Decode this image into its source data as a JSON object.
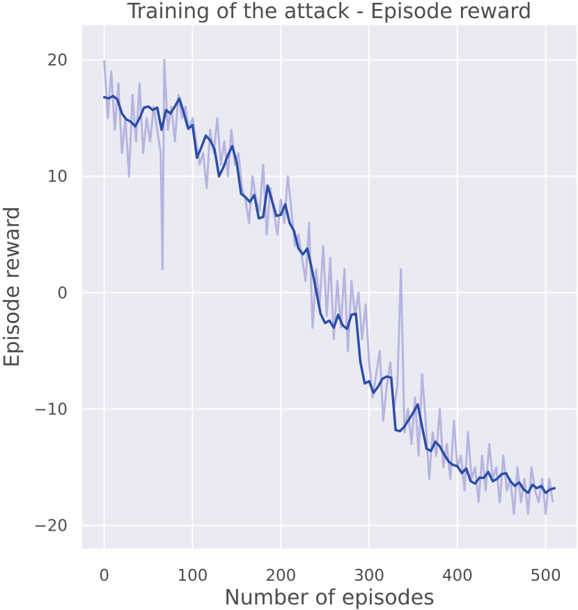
{
  "chart_data": {
    "type": "line",
    "title": "Training of the attack - Episode reward",
    "xlabel": "Number of episodes",
    "ylabel": "Episode reward",
    "xlim": [
      -25,
      535
    ],
    "ylim": [
      -22,
      23
    ],
    "xticks": [
      0,
      100,
      200,
      300,
      400,
      500
    ],
    "xtick_labels": [
      "0",
      "100",
      "200",
      "300",
      "400",
      "500"
    ],
    "yticks": [
      20,
      10,
      0,
      -10,
      -20
    ],
    "ytick_labels": [
      "20",
      "10",
      "0",
      "−10",
      "−20"
    ],
    "grid": true,
    "legend": "none",
    "colors": {
      "plot_background": "#eaeaf2",
      "grid": "#ffffff",
      "raw_series": "#b7b4e0",
      "smoothed_series": "#2b4fa5",
      "text": "#4d4d4d"
    },
    "series": [
      {
        "role": "raw",
        "x": [
          0,
          4,
          8,
          12,
          16,
          20,
          24,
          28,
          32,
          36,
          40,
          44,
          48,
          52,
          56,
          60,
          64,
          66,
          68,
          72,
          76,
          80,
          84,
          88,
          92,
          96,
          100,
          104,
          108,
          112,
          116,
          120,
          124,
          128,
          132,
          136,
          140,
          144,
          148,
          152,
          156,
          160,
          164,
          168,
          172,
          176,
          180,
          184,
          188,
          192,
          196,
          200,
          204,
          208,
          212,
          216,
          220,
          224,
          228,
          232,
          236,
          240,
          244,
          248,
          252,
          256,
          260,
          264,
          268,
          272,
          276,
          280,
          284,
          288,
          292,
          296,
          300,
          304,
          308,
          312,
          316,
          320,
          324,
          328,
          332,
          336,
          340,
          344,
          348,
          352,
          356,
          360,
          364,
          368,
          372,
          376,
          380,
          384,
          388,
          392,
          396,
          400,
          404,
          408,
          412,
          416,
          420,
          424,
          428,
          432,
          436,
          440,
          444,
          448,
          452,
          456,
          460,
          464,
          468,
          472,
          476,
          480,
          484,
          488,
          492,
          496,
          500,
          504,
          508
        ],
        "y": [
          20,
          15,
          19,
          14,
          18,
          12,
          15,
          10,
          17,
          13,
          18,
          12,
          15,
          13,
          16,
          14,
          12,
          2,
          20,
          14,
          16,
          13,
          17,
          15,
          16,
          14,
          15,
          13,
          11,
          12,
          9,
          14,
          12,
          15,
          11,
          13,
          10,
          14,
          11,
          12,
          9,
          8,
          6,
          10,
          8,
          7,
          11,
          5,
          9,
          7,
          5,
          8,
          6,
          10,
          7,
          4,
          5,
          3,
          1,
          6,
          -3,
          2,
          -1,
          4,
          -2,
          3,
          -4,
          1,
          -3,
          2,
          -5,
          1,
          -2,
          0,
          -4,
          -1,
          -6,
          -9,
          -7,
          -5,
          -11,
          -8,
          -6,
          -10,
          -8,
          2,
          -12,
          -10,
          -13,
          -9,
          -14,
          -7,
          -11,
          -16,
          -12,
          -14,
          -10,
          -15,
          -13,
          -16,
          -11,
          -15,
          -14,
          -17,
          -12,
          -16,
          -15,
          -18,
          -14,
          -17,
          -13,
          -16,
          -15,
          -18,
          -14,
          -17,
          -16,
          -19,
          -15,
          -18,
          -16,
          -19,
          -15,
          -17,
          -18,
          -16,
          -19,
          -16,
          -18
        ]
      },
      {
        "role": "smoothed",
        "x": [
          0,
          5,
          10,
          15,
          20,
          25,
          30,
          35,
          40,
          45,
          50,
          55,
          60,
          65,
          70,
          75,
          80,
          85,
          90,
          95,
          100,
          105,
          110,
          115,
          120,
          125,
          130,
          135,
          140,
          145,
          150,
          155,
          160,
          165,
          170,
          175,
          180,
          185,
          190,
          195,
          200,
          205,
          210,
          215,
          220,
          225,
          230,
          235,
          240,
          245,
          250,
          255,
          260,
          265,
          270,
          275,
          280,
          285,
          290,
          295,
          300,
          305,
          310,
          315,
          320,
          325,
          330,
          335,
          340,
          345,
          350,
          355,
          360,
          365,
          370,
          375,
          380,
          385,
          390,
          395,
          400,
          405,
          410,
          415,
          420,
          425,
          430,
          435,
          440,
          445,
          450,
          455,
          460,
          465,
          470,
          475,
          480,
          485,
          490,
          495,
          500,
          505,
          510
        ],
        "y": [
          16.8,
          16.7,
          16.9,
          16.6,
          15.4,
          14.9,
          14.7,
          14.3,
          15.0,
          15.9,
          16.0,
          15.7,
          15.9,
          14.0,
          15.7,
          15.4,
          16.0,
          16.7,
          15.5,
          14.1,
          14.4,
          11.6,
          12.5,
          13.5,
          13.1,
          12.3,
          10.0,
          10.8,
          11.8,
          12.6,
          11.2,
          8.5,
          8.2,
          7.8,
          8.4,
          6.4,
          6.5,
          9.2,
          7.9,
          6.6,
          6.7,
          7.6,
          6.0,
          5.3,
          3.8,
          3.3,
          3.8,
          2.1,
          0.2,
          -1.8,
          -2.6,
          -2.4,
          -3.0,
          -1.9,
          -2.8,
          -3.1,
          -1.9,
          -1.8,
          -5.9,
          -7.8,
          -7.6,
          -8.6,
          -8.1,
          -7.4,
          -7.2,
          -7.3,
          -11.8,
          -11.9,
          -11.5,
          -10.9,
          -10.3,
          -9.6,
          -11.5,
          -13.4,
          -13.6,
          -12.8,
          -13.2,
          -13.9,
          -14.5,
          -14.8,
          -14.9,
          -15.5,
          -15.1,
          -16.2,
          -16.4,
          -15.9,
          -15.9,
          -15.4,
          -16.2,
          -16.0,
          -15.6,
          -15.5,
          -16.2,
          -16.6,
          -16.3,
          -16.9,
          -17.2,
          -16.5,
          -16.8,
          -16.6,
          -17.2,
          -16.9,
          -16.8
        ]
      }
    ]
  }
}
